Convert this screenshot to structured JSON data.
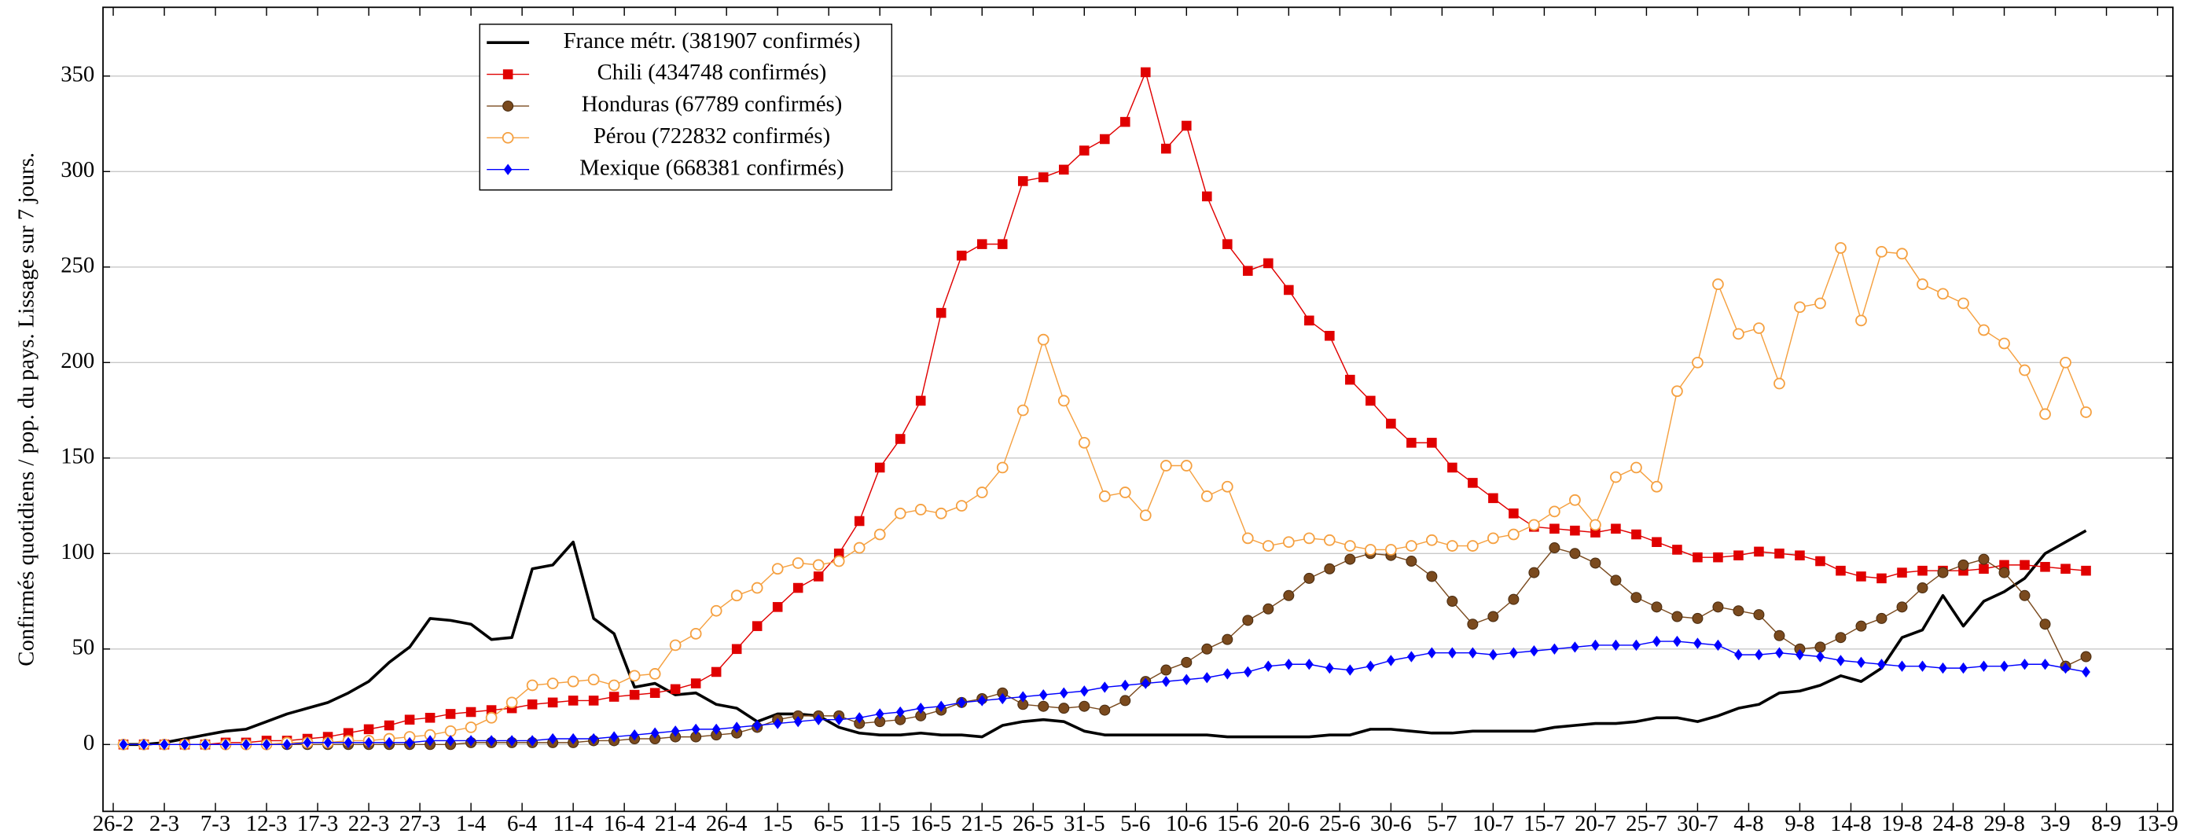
{
  "chart_data": {
    "type": "line",
    "ylabel": "Confirmés quotidiens / pop. du pays. Lissage sur 7 jours.",
    "x": [
      1,
      3,
      5,
      7,
      9,
      11,
      13,
      15,
      17,
      19,
      21,
      23,
      25,
      27,
      29,
      31,
      33,
      35,
      37,
      39,
      41,
      43,
      45,
      47,
      49,
      51,
      53,
      55,
      57,
      59,
      61,
      63,
      65,
      67,
      69,
      71,
      73,
      75,
      77,
      79,
      81,
      83,
      85,
      87,
      89,
      91,
      93,
      95,
      97,
      99,
      101,
      103,
      105,
      107,
      109,
      111,
      113,
      115,
      117,
      119,
      121,
      123,
      125,
      127,
      129,
      131,
      133,
      135,
      137,
      139,
      141,
      143,
      145,
      147,
      149,
      151,
      153,
      155,
      157,
      159,
      161,
      163,
      165,
      167,
      169,
      171,
      173,
      175,
      177,
      179,
      181,
      183,
      185,
      187,
      189,
      191,
      193
    ],
    "xlim": [
      -1,
      201.5
    ],
    "xticks": [
      {
        "value": 0,
        "label": "26-2"
      },
      {
        "value": 5,
        "label": "2-3"
      },
      {
        "value": 10,
        "label": "7-3"
      },
      {
        "value": 15,
        "label": "12-3"
      },
      {
        "value": 20,
        "label": "17-3"
      },
      {
        "value": 25,
        "label": "22-3"
      },
      {
        "value": 30,
        "label": "27-3"
      },
      {
        "value": 35,
        "label": "1-4"
      },
      {
        "value": 40,
        "label": "6-4"
      },
      {
        "value": 45,
        "label": "11-4"
      },
      {
        "value": 50,
        "label": "16-4"
      },
      {
        "value": 55,
        "label": "21-4"
      },
      {
        "value": 60,
        "label": "26-4"
      },
      {
        "value": 65,
        "label": "1-5"
      },
      {
        "value": 70,
        "label": "6-5"
      },
      {
        "value": 75,
        "label": "11-5"
      },
      {
        "value": 80,
        "label": "16-5"
      },
      {
        "value": 85,
        "label": "21-5"
      },
      {
        "value": 90,
        "label": "26-5"
      },
      {
        "value": 95,
        "label": "31-5"
      },
      {
        "value": 100,
        "label": "5-6"
      },
      {
        "value": 105,
        "label": "10-6"
      },
      {
        "value": 110,
        "label": "15-6"
      },
      {
        "value": 115,
        "label": "20-6"
      },
      {
        "value": 120,
        "label": "25-6"
      },
      {
        "value": 125,
        "label": "30-6"
      },
      {
        "value": 130,
        "label": "5-7"
      },
      {
        "value": 135,
        "label": "10-7"
      },
      {
        "value": 140,
        "label": "15-7"
      },
      {
        "value": 145,
        "label": "20-7"
      },
      {
        "value": 150,
        "label": "25-7"
      },
      {
        "value": 155,
        "label": "30-7"
      },
      {
        "value": 160,
        "label": "4-8"
      },
      {
        "value": 165,
        "label": "9-8"
      },
      {
        "value": 170,
        "label": "14-8"
      },
      {
        "value": 175,
        "label": "19-8"
      },
      {
        "value": 180,
        "label": "24-8"
      },
      {
        "value": 185,
        "label": "29-8"
      },
      {
        "value": 190,
        "label": "3-9"
      },
      {
        "value": 195,
        "label": "8-9"
      },
      {
        "value": 200,
        "label": "13-9"
      }
    ],
    "ylim": [
      -35,
      386
    ],
    "yticks": [
      0,
      50,
      100,
      150,
      200,
      250,
      300,
      350
    ],
    "grid": true,
    "legend": "upper left",
    "series": [
      {
        "name": "France métr. (381907 confirmés)",
        "color": "#000000",
        "marker": "none",
        "width": 2,
        "values": [
          0,
          0,
          1,
          3,
          5,
          7,
          8,
          12,
          16,
          19,
          22,
          27,
          33,
          43,
          51,
          66,
          65,
          63,
          55,
          56,
          92,
          94,
          106,
          66,
          58,
          30,
          32,
          26,
          27,
          21,
          19,
          12,
          16,
          16,
          15,
          9,
          6,
          5,
          5,
          6,
          5,
          5,
          4,
          10,
          12,
          13,
          12,
          7,
          5,
          5,
          5,
          5,
          5,
          5,
          4,
          4,
          4,
          4,
          4,
          5,
          5,
          8,
          8,
          7,
          6,
          6,
          7,
          7,
          7,
          7,
          9,
          10,
          11,
          11,
          12,
          14,
          14,
          12,
          15,
          19,
          21,
          27,
          28,
          31,
          36,
          33,
          40,
          56,
          60,
          78,
          62,
          75,
          80,
          87,
          100,
          106,
          112
        ]
      },
      {
        "name": "Chili (434748 confirmés)",
        "color": "#e00000",
        "marker": "square",
        "width": 0.8,
        "values": [
          0,
          0,
          0,
          0,
          0,
          1,
          1,
          2,
          2,
          3,
          4,
          6,
          8,
          10,
          13,
          14,
          16,
          17,
          18,
          19,
          21,
          22,
          23,
          23,
          25,
          26,
          27,
          29,
          32,
          38,
          50,
          62,
          72,
          82,
          88,
          100,
          117,
          145,
          160,
          180,
          226,
          256,
          262,
          262,
          295,
          297,
          301,
          311,
          317,
          326,
          352,
          312,
          324,
          287,
          262,
          248,
          252,
          238,
          222,
          214,
          191,
          180,
          168,
          158,
          158,
          145,
          137,
          129,
          121,
          114,
          113,
          112,
          111,
          113,
          110,
          106,
          102,
          98,
          98,
          99,
          101,
          100,
          99,
          96,
          91,
          88,
          87,
          90,
          91,
          91,
          91,
          92,
          94,
          94,
          93,
          92,
          91
        ]
      },
      {
        "name": "Honduras (67789 confirmés)",
        "color": "#7a4a1e",
        "marker": "circle",
        "width": 0.8,
        "values": [
          0,
          0,
          0,
          0,
          0,
          0,
          0,
          0,
          0,
          0,
          0,
          0,
          0,
          0,
          0,
          0,
          0,
          1,
          1,
          1,
          1,
          1,
          1,
          2,
          2,
          3,
          3,
          4,
          4,
          5,
          6,
          9,
          13,
          15,
          15,
          15,
          11,
          12,
          13,
          15,
          18,
          22,
          24,
          27,
          21,
          20,
          19,
          20,
          18,
          23,
          33,
          39,
          43,
          50,
          55,
          65,
          71,
          78,
          87,
          92,
          97,
          100,
          99,
          96,
          88,
          75,
          63,
          67,
          76,
          90,
          103,
          100,
          95,
          86,
          77,
          72,
          67,
          66,
          72,
          70,
          68,
          57,
          50,
          51,
          56,
          62,
          66,
          72,
          82,
          90,
          94,
          97,
          90,
          78,
          63,
          41,
          46
        ]
      },
      {
        "name": "Pérou (722832 confirmés)",
        "color": "#f5a040",
        "marker": "open-circle",
        "width": 0.8,
        "values": [
          0,
          0,
          0,
          0,
          0,
          0,
          0,
          0,
          1,
          1,
          1,
          2,
          2,
          3,
          4,
          5,
          7,
          9,
          14,
          22,
          31,
          32,
          33,
          34,
          31,
          36,
          37,
          52,
          58,
          70,
          78,
          82,
          92,
          95,
          94,
          96,
          103,
          110,
          121,
          123,
          121,
          125,
          132,
          145,
          175,
          212,
          180,
          158,
          130,
          132,
          120,
          146,
          146,
          130,
          135,
          108,
          104,
          106,
          108,
          107,
          104,
          102,
          102,
          104,
          107,
          104,
          104,
          108,
          110,
          115,
          122,
          128,
          115,
          140,
          145,
          135,
          185,
          200,
          241,
          215,
          218,
          189,
          229,
          231,
          260,
          222,
          258,
          257,
          241,
          236,
          231,
          217,
          210,
          196,
          173,
          200,
          174
        ]
      },
      {
        "name": "Mexique (668381 confirmés)",
        "color": "#0000ff",
        "marker": "diamond",
        "width": 0.8,
        "values": [
          0,
          0,
          0,
          0,
          0,
          0,
          0,
          0,
          0,
          1,
          1,
          1,
          1,
          1,
          1,
          2,
          2,
          2,
          2,
          2,
          2,
          3,
          3,
          3,
          4,
          5,
          6,
          7,
          8,
          8,
          9,
          10,
          11,
          12,
          13,
          13,
          14,
          16,
          17,
          19,
          20,
          22,
          23,
          24,
          25,
          26,
          27,
          28,
          30,
          31,
          32,
          33,
          34,
          35,
          37,
          38,
          41,
          42,
          42,
          40,
          39,
          41,
          44,
          46,
          48,
          48,
          48,
          47,
          48,
          49,
          50,
          51,
          52,
          52,
          52,
          54,
          54,
          53,
          52,
          47,
          47,
          48,
          47,
          46,
          44,
          43,
          42,
          41,
          41,
          40,
          40,
          41,
          41,
          42,
          42,
          40,
          38
        ]
      }
    ]
  }
}
